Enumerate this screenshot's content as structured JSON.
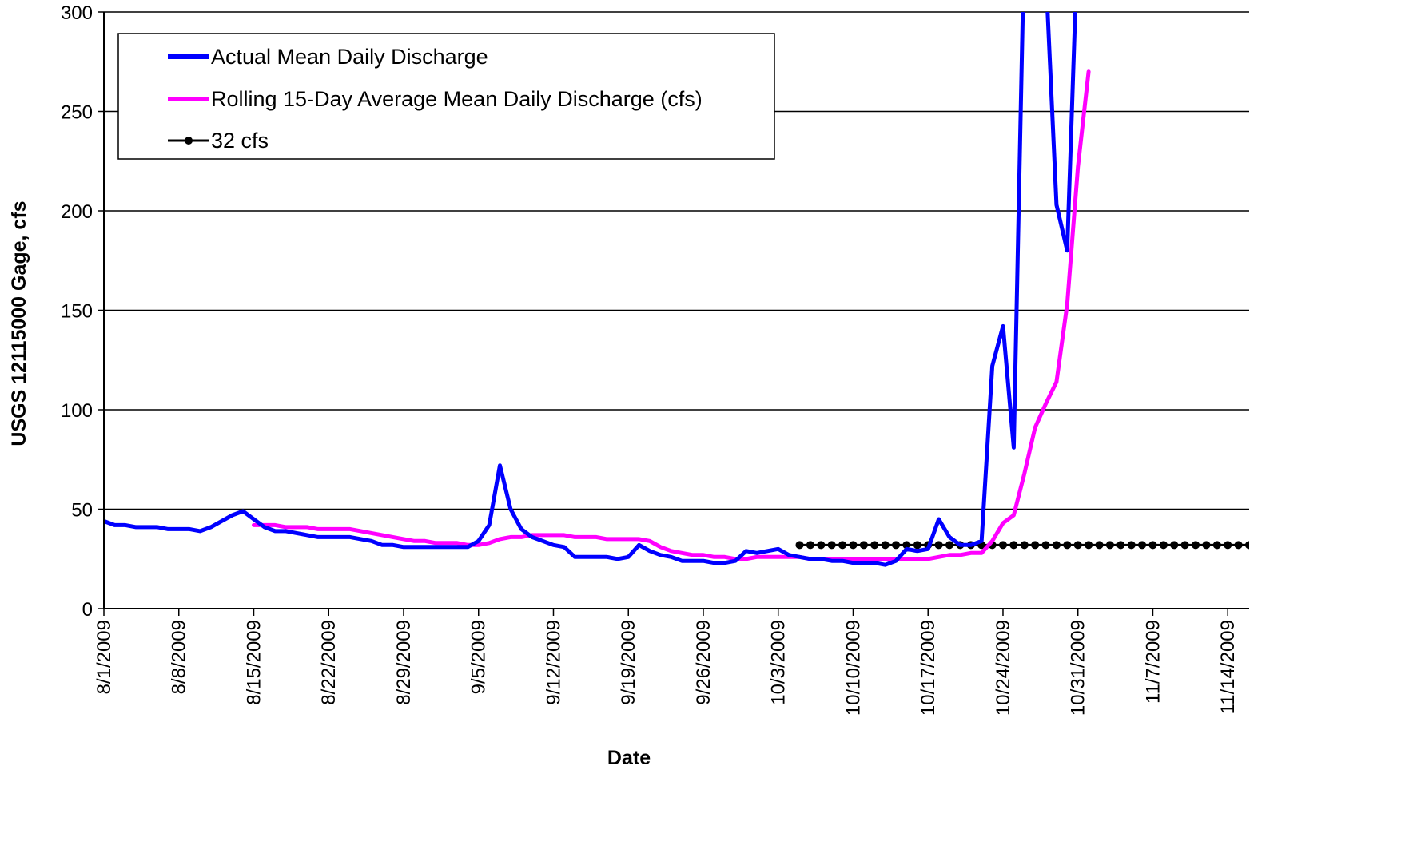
{
  "chart_data": {
    "type": "line",
    "title": "",
    "xlabel": "Date",
    "ylabel": "USGS 12115000 Gage, cfs",
    "ylim": [
      0,
      300
    ],
    "yticks": [
      0,
      50,
      100,
      150,
      200,
      250,
      300
    ],
    "xlim": [
      "2009-08-01",
      "2009-11-16"
    ],
    "xticks": [
      "8/1/2009",
      "8/8/2009",
      "8/15/2009",
      "8/22/2009",
      "8/29/2009",
      "9/5/2009",
      "9/12/2009",
      "9/19/2009",
      "9/26/2009",
      "10/3/2009",
      "10/10/2009",
      "10/17/2009",
      "10/24/2009",
      "10/31/2009",
      "11/7/2009",
      "11/14/2009"
    ],
    "grid": "horizontal",
    "legend_position": "top-left",
    "series": [
      {
        "name": "Actual Mean Daily Discharge",
        "color": "#0000FF",
        "points": [
          [
            "2009-08-01",
            44
          ],
          [
            "2009-08-02",
            42
          ],
          [
            "2009-08-03",
            42
          ],
          [
            "2009-08-04",
            41
          ],
          [
            "2009-08-05",
            41
          ],
          [
            "2009-08-06",
            41
          ],
          [
            "2009-08-07",
            40
          ],
          [
            "2009-08-08",
            40
          ],
          [
            "2009-08-09",
            40
          ],
          [
            "2009-08-10",
            39
          ],
          [
            "2009-08-11",
            41
          ],
          [
            "2009-08-12",
            44
          ],
          [
            "2009-08-13",
            47
          ],
          [
            "2009-08-14",
            49
          ],
          [
            "2009-08-15",
            45
          ],
          [
            "2009-08-16",
            41
          ],
          [
            "2009-08-17",
            39
          ],
          [
            "2009-08-18",
            39
          ],
          [
            "2009-08-19",
            38
          ],
          [
            "2009-08-20",
            37
          ],
          [
            "2009-08-21",
            36
          ],
          [
            "2009-08-22",
            36
          ],
          [
            "2009-08-23",
            36
          ],
          [
            "2009-08-24",
            36
          ],
          [
            "2009-08-25",
            35
          ],
          [
            "2009-08-26",
            34
          ],
          [
            "2009-08-27",
            32
          ],
          [
            "2009-08-28",
            32
          ],
          [
            "2009-08-29",
            31
          ],
          [
            "2009-08-30",
            31
          ],
          [
            "2009-08-31",
            31
          ],
          [
            "2009-09-01",
            31
          ],
          [
            "2009-09-02",
            31
          ],
          [
            "2009-09-03",
            31
          ],
          [
            "2009-09-04",
            31
          ],
          [
            "2009-09-05",
            34
          ],
          [
            "2009-09-06",
            42
          ],
          [
            "2009-09-07",
            72
          ],
          [
            "2009-09-08",
            50
          ],
          [
            "2009-09-09",
            40
          ],
          [
            "2009-09-10",
            36
          ],
          [
            "2009-09-11",
            34
          ],
          [
            "2009-09-12",
            32
          ],
          [
            "2009-09-13",
            31
          ],
          [
            "2009-09-14",
            26
          ],
          [
            "2009-09-15",
            26
          ],
          [
            "2009-09-16",
            26
          ],
          [
            "2009-09-17",
            26
          ],
          [
            "2009-09-18",
            25
          ],
          [
            "2009-09-19",
            26
          ],
          [
            "2009-09-20",
            32
          ],
          [
            "2009-09-21",
            29
          ],
          [
            "2009-09-22",
            27
          ],
          [
            "2009-09-23",
            26
          ],
          [
            "2009-09-24",
            24
          ],
          [
            "2009-09-25",
            24
          ],
          [
            "2009-09-26",
            24
          ],
          [
            "2009-09-27",
            23
          ],
          [
            "2009-09-28",
            23
          ],
          [
            "2009-09-29",
            24
          ],
          [
            "2009-09-30",
            29
          ],
          [
            "2009-10-01",
            28
          ],
          [
            "2009-10-02",
            29
          ],
          [
            "2009-10-03",
            30
          ],
          [
            "2009-10-04",
            27
          ],
          [
            "2009-10-05",
            26
          ],
          [
            "2009-10-06",
            25
          ],
          [
            "2009-10-07",
            25
          ],
          [
            "2009-10-08",
            24
          ],
          [
            "2009-10-09",
            24
          ],
          [
            "2009-10-10",
            23
          ],
          [
            "2009-10-11",
            23
          ],
          [
            "2009-10-12",
            23
          ],
          [
            "2009-10-13",
            22
          ],
          [
            "2009-10-14",
            24
          ],
          [
            "2009-10-15",
            30
          ],
          [
            "2009-10-16",
            29
          ],
          [
            "2009-10-17",
            30
          ],
          [
            "2009-10-18",
            45
          ],
          [
            "2009-10-19",
            36
          ],
          [
            "2009-10-20",
            32
          ],
          [
            "2009-10-21",
            32
          ],
          [
            "2009-10-22",
            34
          ],
          [
            "2009-10-23",
            122
          ],
          [
            "2009-10-24",
            142
          ],
          [
            "2009-10-25",
            81
          ],
          [
            "2009-10-26",
            340
          ],
          [
            "2009-10-27",
            360
          ],
          [
            "2009-10-28",
            320
          ],
          [
            "2009-10-29",
            203
          ],
          [
            "2009-10-30",
            180
          ],
          [
            "2009-10-31",
            340
          ]
        ]
      },
      {
        "name": "Rolling 15-Day Average Mean Daily Discharge (cfs)",
        "color": "#FF00FF",
        "points": [
          [
            "2009-08-15",
            42
          ],
          [
            "2009-08-16",
            42
          ],
          [
            "2009-08-17",
            42
          ],
          [
            "2009-08-18",
            41
          ],
          [
            "2009-08-19",
            41
          ],
          [
            "2009-08-20",
            41
          ],
          [
            "2009-08-21",
            40
          ],
          [
            "2009-08-22",
            40
          ],
          [
            "2009-08-23",
            40
          ],
          [
            "2009-08-24",
            40
          ],
          [
            "2009-08-25",
            39
          ],
          [
            "2009-08-26",
            38
          ],
          [
            "2009-08-27",
            37
          ],
          [
            "2009-08-28",
            36
          ],
          [
            "2009-08-29",
            35
          ],
          [
            "2009-08-30",
            34
          ],
          [
            "2009-08-31",
            34
          ],
          [
            "2009-09-01",
            33
          ],
          [
            "2009-09-02",
            33
          ],
          [
            "2009-09-03",
            33
          ],
          [
            "2009-09-04",
            32
          ],
          [
            "2009-09-05",
            32
          ],
          [
            "2009-09-06",
            33
          ],
          [
            "2009-09-07",
            35
          ],
          [
            "2009-09-08",
            36
          ],
          [
            "2009-09-09",
            36
          ],
          [
            "2009-09-10",
            37
          ],
          [
            "2009-09-11",
            37
          ],
          [
            "2009-09-12",
            37
          ],
          [
            "2009-09-13",
            37
          ],
          [
            "2009-09-14",
            36
          ],
          [
            "2009-09-15",
            36
          ],
          [
            "2009-09-16",
            36
          ],
          [
            "2009-09-17",
            35
          ],
          [
            "2009-09-18",
            35
          ],
          [
            "2009-09-19",
            35
          ],
          [
            "2009-09-20",
            35
          ],
          [
            "2009-09-21",
            34
          ],
          [
            "2009-09-22",
            31
          ],
          [
            "2009-09-23",
            29
          ],
          [
            "2009-09-24",
            28
          ],
          [
            "2009-09-25",
            27
          ],
          [
            "2009-09-26",
            27
          ],
          [
            "2009-09-27",
            26
          ],
          [
            "2009-09-28",
            26
          ],
          [
            "2009-09-29",
            25
          ],
          [
            "2009-09-30",
            25
          ],
          [
            "2009-10-01",
            26
          ],
          [
            "2009-10-02",
            26
          ],
          [
            "2009-10-03",
            26
          ],
          [
            "2009-10-04",
            26
          ],
          [
            "2009-10-05",
            26
          ],
          [
            "2009-10-06",
            25
          ],
          [
            "2009-10-07",
            25
          ],
          [
            "2009-10-08",
            25
          ],
          [
            "2009-10-09",
            25
          ],
          [
            "2009-10-10",
            25
          ],
          [
            "2009-10-11",
            25
          ],
          [
            "2009-10-12",
            25
          ],
          [
            "2009-10-13",
            25
          ],
          [
            "2009-10-14",
            25
          ],
          [
            "2009-10-15",
            25
          ],
          [
            "2009-10-16",
            25
          ],
          [
            "2009-10-17",
            25
          ],
          [
            "2009-10-18",
            26
          ],
          [
            "2009-10-19",
            27
          ],
          [
            "2009-10-20",
            27
          ],
          [
            "2009-10-21",
            28
          ],
          [
            "2009-10-22",
            28
          ],
          [
            "2009-10-23",
            34
          ],
          [
            "2009-10-24",
            43
          ],
          [
            "2009-10-25",
            47
          ],
          [
            "2009-10-26",
            68
          ],
          [
            "2009-10-27",
            91
          ],
          [
            "2009-10-28",
            103
          ],
          [
            "2009-10-29",
            114
          ],
          [
            "2009-10-30",
            153
          ],
          [
            "2009-10-31",
            222
          ],
          [
            "2009-11-01",
            270
          ]
        ]
      },
      {
        "name": "32 cfs",
        "color": "#000000",
        "marker": "circle",
        "x_start": "2009-10-05",
        "x_end": "2009-11-16",
        "value": 32
      }
    ]
  }
}
